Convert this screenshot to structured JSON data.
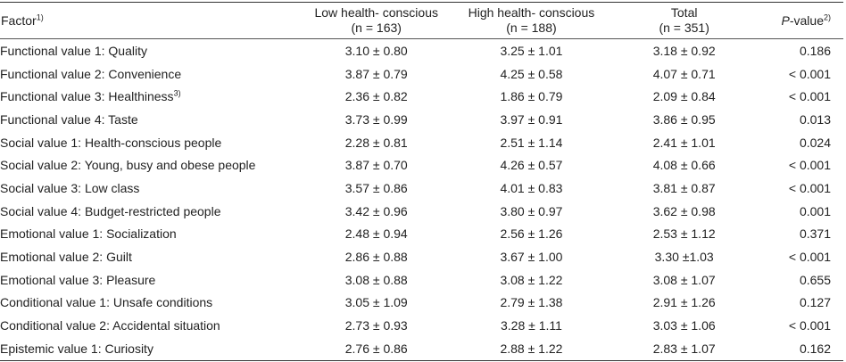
{
  "header": {
    "factor": "Factor",
    "factor_sup": "1)",
    "low_line1": "Low health- conscious",
    "low_line2": "(n = 163)",
    "high_line1": "High health- conscious",
    "high_line2": "(n = 188)",
    "total_line1": "Total",
    "total_line2": "(n = 351)",
    "p_italic": "P",
    "p_rest": "-value",
    "p_sup": "2)"
  },
  "rows": [
    {
      "factor": "Functional value 1: Quality",
      "sup": "",
      "low": "3.10 ± 0.80",
      "high": "3.25 ± 1.01",
      "total": "3.18 ± 0.92",
      "p": "0.186"
    },
    {
      "factor": "Functional value 2: Convenience",
      "sup": "",
      "low": "3.87 ± 0.79",
      "high": "4.25 ± 0.58",
      "total": "4.07 ± 0.71",
      "p": "< 0.001"
    },
    {
      "factor": "Functional value 3: Healthiness",
      "sup": "3)",
      "low": "2.36 ± 0.82",
      "high": "1.86 ± 0.79",
      "total": "2.09 ± 0.84",
      "p": "< 0.001"
    },
    {
      "factor": "Functional value 4: Taste",
      "sup": "",
      "low": "3.73 ± 0.99",
      "high": "3.97 ± 0.91",
      "total": "3.86 ± 0.95",
      "p": "0.013"
    },
    {
      "factor": "Social value 1: Health-conscious people",
      "sup": "",
      "low": "2.28 ± 0.81",
      "high": "2.51 ± 1.14",
      "total": "2.41 ± 1.01",
      "p": "0.024"
    },
    {
      "factor": "Social value 2: Young, busy and obese people",
      "sup": "",
      "low": "3.87 ± 0.70",
      "high": "4.26 ± 0.57",
      "total": "4.08 ± 0.66",
      "p": "< 0.001"
    },
    {
      "factor": "Social value 3: Low class",
      "sup": "",
      "low": "3.57 ± 0.86",
      "high": "4.01 ± 0.83",
      "total": "3.81 ± 0.87",
      "p": "< 0.001"
    },
    {
      "factor": "Social value 4: Budget-restricted people",
      "sup": "",
      "low": "3.42 ± 0.96",
      "high": "3.80 ± 0.97",
      "total": "3.62 ± 0.98",
      "p": "0.001"
    },
    {
      "factor": "Emotional value 1: Socialization",
      "sup": "",
      "low": "2.48 ± 0.94",
      "high": "2.56 ± 1.26",
      "total": "2.53 ± 1.12",
      "p": "0.371"
    },
    {
      "factor": "Emotional value 2: Guilt",
      "sup": "",
      "low": "2.86 ± 0.88",
      "high": "3.67 ± 1.00",
      "total": "3.30 ±1.03",
      "p": "< 0.001"
    },
    {
      "factor": "Emotional value 3: Pleasure",
      "sup": "",
      "low": "3.08 ± 0.88",
      "high": "3.08 ± 1.22",
      "total": "3.08 ± 1.07",
      "p": "0.655"
    },
    {
      "factor": "Conditional value 1: Unsafe conditions",
      "sup": "",
      "low": "3.05 ± 1.09",
      "high": "2.79 ± 1.38",
      "total": "2.91 ± 1.26",
      "p": "0.127"
    },
    {
      "factor": "Conditional value 2: Accidental situation",
      "sup": "",
      "low": "2.73 ± 0.93",
      "high": "3.28 ± 1.11",
      "total": "3.03 ± 1.06",
      "p": "< 0.001"
    },
    {
      "factor": "Epistemic value 1: Curiosity",
      "sup": "",
      "low": "2.76 ± 0.86",
      "high": "2.88 ± 1.22",
      "total": "2.83 ± 1.07",
      "p": "0.162"
    }
  ]
}
